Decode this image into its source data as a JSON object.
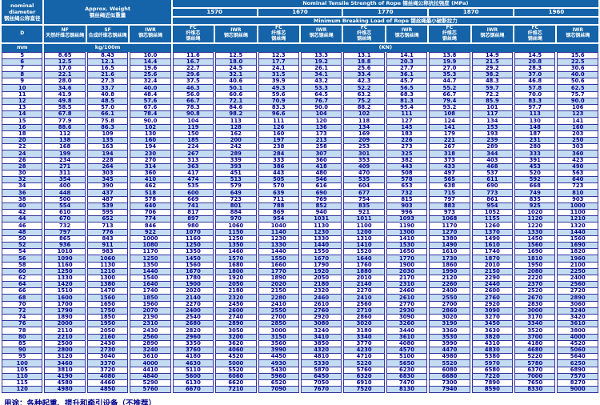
{
  "colors": {
    "header_bg": "#1563a8",
    "grid": "#3434a0",
    "data_text": "#00008b",
    "alt_row_bg": "#c3dcf1"
  },
  "table": {
    "header": {
      "diameter": {
        "en": "nominal diameter",
        "zh": "钢丝绳公称直径",
        "symbol": "D",
        "unit": "mm"
      },
      "weight": {
        "en": "Approx. Weight",
        "zh": "钢丝绳近似重量",
        "unit": "kg/100m",
        "columns": [
          {
            "code": "NF",
            "zh": "天然纤维芯钢丝绳"
          },
          {
            "code": "SF",
            "zh": "合成纤维芯钢丝绳"
          },
          {
            "code": "IWR",
            "zh": "钢芯钢丝绳"
          }
        ]
      },
      "strength": {
        "en": "Nominal Tensile Strength of Rope",
        "zh": "钢丝绳公称抗拉强度",
        "mpa": "(MPa)",
        "grades": [
          "1570",
          "1670",
          "1770",
          "1870",
          "1960"
        ],
        "breaking_en": "Minimum Breaking Load of Rope",
        "breaking_zh": "钢丝绳最小破断拉力",
        "sub_columns": [
          {
            "code": "FC",
            "zh": "纤维芯钢丝绳"
          },
          {
            "code": "IWR",
            "zh": "钢芯钢丝绳"
          }
        ],
        "unit": "(KN)"
      }
    },
    "rows": [
      [
        "5",
        "8.65",
        "8.43",
        "10.0",
        "11.6",
        "12.5",
        "12.3",
        "13.3",
        "13.1",
        "14.1",
        "13.8",
        "14.9",
        "14.5",
        "15.6"
      ],
      [
        "6",
        "12.5",
        "12.1",
        "14.4",
        "16.7",
        "18.0",
        "17.7",
        "19.2",
        "18.8",
        "20.3",
        "19.9",
        "21.5",
        "20.8",
        "22.5"
      ],
      [
        "7",
        "17.0",
        "16.5",
        "19.6",
        "22.7",
        "24.5",
        "24.1",
        "26.1",
        "25.6",
        "27.7",
        "27.0",
        "29.2",
        "28.3",
        "30.6"
      ],
      [
        "8",
        "22.1",
        "21.6",
        "25.6",
        "29.6",
        "32.1",
        "31.5",
        "34.1",
        "33.4",
        "36.1",
        "35.3",
        "38.2",
        "37.0",
        "40.0"
      ],
      [
        "9",
        "28.0",
        "27.3",
        "32.4",
        "37.5",
        "40.6",
        "39.9",
        "43.2",
        "42.3",
        "45.7",
        "44.7",
        "48.3",
        "46.8",
        "50.6"
      ],
      [
        "10",
        "34.6",
        "33.7",
        "40.0",
        "46.3",
        "50.1",
        "49.3",
        "53.3",
        "52.2",
        "56.5",
        "55.2",
        "59.7",
        "57.8",
        "62.5"
      ],
      [
        "11",
        "41.9",
        "40.8",
        "48.4",
        "56.0",
        "60.6",
        "59.6",
        "64.5",
        "63.2",
        "68.3",
        "66.7",
        "72.2",
        "70.0",
        "75.7"
      ],
      [
        "12",
        "49.8",
        "48.5",
        "57.6",
        "66.7",
        "72.1",
        "70.9",
        "76.7",
        "75.2",
        "81.3",
        "79.4",
        "85.9",
        "83.3",
        "90.0"
      ],
      [
        "13",
        "58.5",
        "57.0",
        "67.6",
        "78.3",
        "84.6",
        "83.3",
        "90.0",
        "88.2",
        "95.4",
        "93.2",
        "101",
        "97.7",
        "106"
      ],
      [
        "14",
        "67.8",
        "66.1",
        "78.4",
        "90.8",
        "98.2",
        "96.6",
        "104",
        "102",
        "111",
        "108",
        "117",
        "113",
        "123"
      ],
      [
        "15",
        "77.9",
        "75.8",
        "90.0",
        "104",
        "113",
        "111",
        "120",
        "118",
        "127",
        "124",
        "134",
        "130",
        "141"
      ],
      [
        "16",
        "88.6",
        "86.3",
        "102",
        "119",
        "128",
        "126",
        "136",
        "134",
        "145",
        "141",
        "153",
        "148",
        "160"
      ],
      [
        "18",
        "112",
        "109",
        "130",
        "150",
        "162",
        "160",
        "173",
        "169",
        "183",
        "179",
        "193",
        "187",
        "203"
      ],
      [
        "20",
        "138",
        "135",
        "160",
        "185",
        "200",
        "197",
        "213",
        "209",
        "226",
        "221",
        "239",
        "231",
        "250"
      ],
      [
        "22",
        "168",
        "163",
        "194",
        "224",
        "242",
        "238",
        "258",
        "253",
        "273",
        "267",
        "289",
        "280",
        "303"
      ],
      [
        "24",
        "199",
        "194",
        "230",
        "267",
        "289",
        "284",
        "307",
        "301",
        "325",
        "318",
        "344",
        "333",
        "360"
      ],
      [
        "26",
        "234",
        "228",
        "270",
        "313",
        "339",
        "333",
        "360",
        "353",
        "382",
        "373",
        "403",
        "391",
        "423"
      ],
      [
        "28",
        "271",
        "264",
        "314",
        "363",
        "393",
        "386",
        "418",
        "409",
        "443",
        "433",
        "468",
        "453",
        "490"
      ],
      [
        "30",
        "311",
        "303",
        "360",
        "417",
        "451",
        "443",
        "480",
        "470",
        "508",
        "497",
        "537",
        "520",
        "563"
      ],
      [
        "32",
        "354",
        "345",
        "410",
        "474",
        "513",
        "505",
        "546",
        "535",
        "578",
        "565",
        "611",
        "592",
        "640"
      ],
      [
        "34",
        "400",
        "390",
        "462",
        "535",
        "579",
        "570",
        "616",
        "604",
        "653",
        "638",
        "690",
        "668",
        "723"
      ],
      [
        "36",
        "448",
        "437",
        "518",
        "600",
        "649",
        "639",
        "690",
        "677",
        "732",
        "715",
        "773",
        "749",
        "810"
      ],
      [
        "38",
        "500",
        "487",
        "578",
        "669",
        "723",
        "711",
        "769",
        "754",
        "815",
        "797",
        "861",
        "835",
        "903"
      ],
      [
        "40",
        "554",
        "539",
        "640",
        "741",
        "801",
        "788",
        "852",
        "835",
        "903",
        "883",
        "954",
        "925",
        "1000"
      ],
      [
        "42",
        "610",
        "595",
        "706",
        "817",
        "884",
        "869",
        "940",
        "921",
        "996",
        "973",
        "1052",
        "1020",
        "1100"
      ],
      [
        "44",
        "670",
        "652",
        "774",
        "897",
        "970",
        "954",
        "1031",
        "1011",
        "1093",
        "1068",
        "1155",
        "1120",
        "1210"
      ],
      [
        "46",
        "732",
        "713",
        "846",
        "980",
        "1060",
        "1040",
        "1130",
        "1100",
        "1190",
        "1170",
        "1260",
        "1220",
        "1320"
      ],
      [
        "48",
        "797",
        "776",
        "922",
        "1070",
        "1150",
        "1140",
        "1230",
        "1200",
        "1300",
        "1270",
        "1370",
        "1330",
        "1440"
      ],
      [
        "50",
        "865",
        "843",
        "1000",
        "1160",
        "1250",
        "1230",
        "1330",
        "1310",
        "1410",
        "1380",
        "1490",
        "1450",
        "1560"
      ],
      [
        "52",
        "936",
        "911",
        "1080",
        "1250",
        "1350",
        "1330",
        "1440",
        "1410",
        "1530",
        "1490",
        "1610",
        "1560",
        "1690"
      ],
      [
        "54",
        "1010",
        "983",
        "1170",
        "1350",
        "1460",
        "1440",
        "1550",
        "1520",
        "1650",
        "1610",
        "1740",
        "1690",
        "1820"
      ],
      [
        "56",
        "1090",
        "1060",
        "1250",
        "1450",
        "1570",
        "1550",
        "1670",
        "1640",
        "1770",
        "1730",
        "1870",
        "1810",
        "1960"
      ],
      [
        "58",
        "1160",
        "1130",
        "1350",
        "1560",
        "1680",
        "1660",
        "1790",
        "1760",
        "1900",
        "1860",
        "2010",
        "1950",
        "2100"
      ],
      [
        "60",
        "1250",
        "1210",
        "1440",
        "1670",
        "1800",
        "1770",
        "1920",
        "1880",
        "2030",
        "1990",
        "2150",
        "2080",
        "2250"
      ],
      [
        "62",
        "1330",
        "1300",
        "1540",
        "1780",
        "1920",
        "1890",
        "2050",
        "2010",
        "2170",
        "2120",
        "2290",
        "2220",
        "2400"
      ],
      [
        "64",
        "1420",
        "1380",
        "1640",
        "1900",
        "2050",
        "2020",
        "2180",
        "2140",
        "2310",
        "2260",
        "2440",
        "2370",
        "2560"
      ],
      [
        "66",
        "1510",
        "1470",
        "1740",
        "2020",
        "2180",
        "2150",
        "2320",
        "2270",
        "2460",
        "2400",
        "2600",
        "2520",
        "2720"
      ],
      [
        "68",
        "1600",
        "1560",
        "1850",
        "2140",
        "2320",
        "2280",
        "2460",
        "2410",
        "2610",
        "2550",
        "2760",
        "2670",
        "2890"
      ],
      [
        "70",
        "1700",
        "1650",
        "1960",
        "2270",
        "2450",
        "2410",
        "2610",
        "2560",
        "2770",
        "2700",
        "2920",
        "2830",
        "3060"
      ],
      [
        "72",
        "1790",
        "1750",
        "2070",
        "2400",
        "2600",
        "2550",
        "2760",
        "2710",
        "2930",
        "2860",
        "3090",
        "3000",
        "3240"
      ],
      [
        "74",
        "1890",
        "1850",
        "2190",
        "2540",
        "2740",
        "2700",
        "2920",
        "2860",
        "3090",
        "3020",
        "3270",
        "3170",
        "3420"
      ],
      [
        "76",
        "2000",
        "1950",
        "2310",
        "2680",
        "2890",
        "2850",
        "3080",
        "3020",
        "3260",
        "3190",
        "3450",
        "3340",
        "3610"
      ],
      [
        "78",
        "2110",
        "2050",
        "2430",
        "2820",
        "3050",
        "3000",
        "3240",
        "3180",
        "3440",
        "3360",
        "3630",
        "3520",
        "3800"
      ],
      [
        "80",
        "2210",
        "2160",
        "2560",
        "2960",
        "3200",
        "3150",
        "3410",
        "3340",
        "3610",
        "3530",
        "3820",
        "3700",
        "4000"
      ],
      [
        "85",
        "2500",
        "2430",
        "2890",
        "3350",
        "3620",
        "3560",
        "3850",
        "3770",
        "4080",
        "3990",
        "4310",
        "4180",
        "4520"
      ],
      [
        "90",
        "2800",
        "2730",
        "3240",
        "3760",
        "4060",
        "3990",
        "4320",
        "4230",
        "4570",
        "4470",
        "4830",
        "4680",
        "5060"
      ],
      [
        "95",
        "3120",
        "3040",
        "3610",
        "4180",
        "4520",
        "4450",
        "4810",
        "4710",
        "5100",
        "4980",
        "5380",
        "5220",
        "5640"
      ],
      [
        "100",
        "3460",
        "3370",
        "4000",
        "4630",
        "5000",
        "4930",
        "5330",
        "5220",
        "5650",
        "5520",
        "5970",
        "5780",
        "6250"
      ],
      [
        "105",
        "3810",
        "3720",
        "4410",
        "5110",
        "5520",
        "5430",
        "5870",
        "5760",
        "6230",
        "6080",
        "6580",
        "6370",
        "6890"
      ],
      [
        "110",
        "4190",
        "4080",
        "4840",
        "5600",
        "6060",
        "5960",
        "6450",
        "6320",
        "6830",
        "6680",
        "7220",
        "7000",
        "7570"
      ],
      [
        "115",
        "4580",
        "4460",
        "5290",
        "6130",
        "6620",
        "6520",
        "7050",
        "6910",
        "7470",
        "7300",
        "7890",
        "7650",
        "8270"
      ],
      [
        "120",
        "4980",
        "4850",
        "5760",
        "6670",
        "7210",
        "7090",
        "7670",
        "7520",
        "8130",
        "7940",
        "8590",
        "8330",
        "9000"
      ]
    ]
  },
  "note": "用途：各种起重、提升和牵引设备（不推荐）"
}
